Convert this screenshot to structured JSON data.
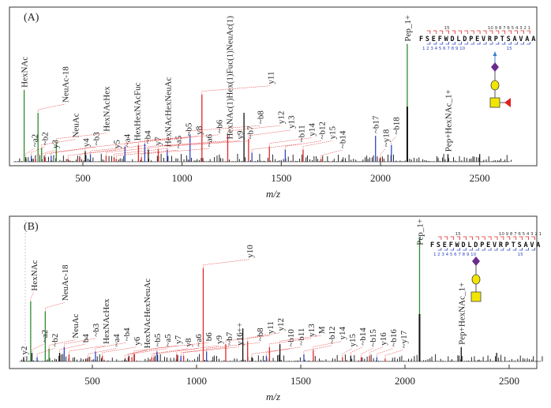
{
  "colors": {
    "glycan": "#2e8b2e",
    "y_ion": "#e02828",
    "b_ion": "#3048c0",
    "other": "#111111",
    "hexnac": "#f2e600",
    "hex": "#f2e600",
    "fuc": "#e02020",
    "neuac": "#6a2c8c",
    "site": "#e02020"
  },
  "chart_data": [
    {
      "type": "bar",
      "panel_label": "(A)",
      "xlabel": "m/z",
      "ylabel": "",
      "xlim": [
        125,
        2780
      ],
      "ylim": [
        0,
        100
      ],
      "xticks": [
        "500",
        "1000",
        "1500",
        "2000",
        "2500"
      ],
      "sequence": {
        "text": "FSEFWDLDPEVRPTSAVAA",
        "glycosite_index": 1,
        "y_numbers_top": [
          "15",
          "10 9 8 7 6 5 4 3 2 1"
        ],
        "b_numbers_bottom": [
          "1 2 3 4 5 6 7 8 9 10",
          "15"
        ]
      },
      "glycan": [
        "HexNAc",
        "Fuc",
        "Hex",
        "NeuAc"
      ],
      "peaks": [
        {
          "label": "HexNAc",
          "mz": 204,
          "intensity": 47,
          "type": "glycan"
        },
        {
          "label": "~a2",
          "mz": 212,
          "intensity": 3,
          "type": "other"
        },
        {
          "label": "~b2",
          "mz": 240,
          "intensity": 4,
          "type": "b"
        },
        {
          "label": "y3",
          "mz": 262,
          "intensity": 2,
          "type": "y"
        },
        {
          "label": "NeuAc-18",
          "mz": 274,
          "intensity": 32,
          "type": "glycan"
        },
        {
          "label": "NeuAc",
          "mz": 292,
          "intensity": 9,
          "type": "glycan"
        },
        {
          "label": "y4",
          "mz": 310,
          "intensity": 3,
          "type": "y"
        },
        {
          "label": "~b3",
          "mz": 340,
          "intensity": 4,
          "type": "b"
        },
        {
          "label": "HexNAcHex",
          "mz": 366,
          "intensity": 13,
          "type": "glycan"
        },
        {
          "label": "y5",
          "mz": 425,
          "intensity": 2,
          "type": "y"
        },
        {
          "label": "~a4",
          "mz": 485,
          "intensity": 3,
          "type": "y"
        },
        {
          "label": "HexHexNAcFuc",
          "mz": 512,
          "intensity": 7,
          "type": "other"
        },
        {
          "label": "~b4",
          "mz": 538,
          "intensity": 5,
          "type": "b"
        },
        {
          "label": "y7",
          "mz": 617,
          "intensity": 4,
          "type": "y"
        },
        {
          "label": "HexNAcHexNeuAc",
          "mz": 657,
          "intensity": 3,
          "type": "y"
        },
        {
          "label": "~a5",
          "mz": 668,
          "intensity": 2,
          "type": "y"
        },
        {
          "label": "~b5",
          "mz": 712,
          "intensity": 10,
          "type": "b"
        },
        {
          "label": "y8",
          "mz": 780,
          "intensity": 11,
          "type": "y"
        },
        {
          "label": "~a6",
          "mz": 795,
          "intensity": 3,
          "type": "y"
        },
        {
          "label": "~b6",
          "mz": 812,
          "intensity": 12,
          "type": "b"
        },
        {
          "label": "HexNAc(1)Hex(1)Fuc(1)NeuAc(1)",
          "mz": 830,
          "intensity": 8,
          "type": "other"
        },
        {
          "label": "y9",
          "mz": 880,
          "intensity": 8,
          "type": "y"
        },
        {
          "label": "~b7",
          "mz": 925,
          "intensity": 8,
          "type": "b"
        },
        {
          "label": "~b8",
          "mz": 1040,
          "intensity": 18,
          "type": "b"
        },
        {
          "label": "y11",
          "mz": 1100,
          "intensity": 44,
          "type": "y"
        },
        {
          "label": "y12",
          "mz": 1230,
          "intensity": 18,
          "type": "y"
        },
        {
          "label": "",
          "mz": 1312,
          "intensity": 32,
          "type": "other"
        },
        {
          "label": "y13",
          "mz": 1335,
          "intensity": 15,
          "type": "y"
        },
        {
          "label": "~b11",
          "mz": 1352,
          "intensity": 6,
          "type": "b"
        },
        {
          "label": "y14",
          "mz": 1440,
          "intensity": 10,
          "type": "y"
        },
        {
          "label": "~b12",
          "mz": 1520,
          "intensity": 8,
          "type": "b"
        },
        {
          "label": "y15",
          "mz": 1610,
          "intensity": 8,
          "type": "y"
        },
        {
          "label": "~b14",
          "mz": 1700,
          "intensity": 2,
          "type": "y"
        },
        {
          "label": "~b17",
          "mz": 1975,
          "intensity": 17,
          "type": "b"
        },
        {
          "label": "~y18",
          "mz": 2000,
          "intensity": 3,
          "type": "y"
        },
        {
          "label": "~b18",
          "mz": 2055,
          "intensity": 11,
          "type": "b"
        },
        {
          "label": "Pep_1+",
          "mz": 2135,
          "intensity": 77,
          "type": "glycan",
          "black_part": 36
        },
        {
          "label": "Pep+HexNAc_1+",
          "mz": 2340,
          "intensity": 5,
          "type": "other"
        },
        {
          "label": "",
          "mz": 2500,
          "intensity": 5,
          "type": "other"
        }
      ]
    },
    {
      "type": "bar",
      "panel_label": "(B)",
      "xlabel": "m/z",
      "ylabel": "",
      "xlim": [
        85,
        2620
      ],
      "ylim": [
        0,
        100
      ],
      "xticks": [
        "500",
        "1000",
        "1500",
        "2000",
        "2500"
      ],
      "sequence": {
        "text": "FSEFWDLDPEVRPTSAVA",
        "glycosite_index": 1,
        "y_numbers_top": [
          "15",
          "10 9 8 7 6 5 4 3 2 1"
        ],
        "b_numbers_bottom": [
          "1 2 3 4 5 6 7 8 9 10",
          "15"
        ]
      },
      "glycan": [
        "HexNAc",
        "Hex",
        "NeuAc"
      ],
      "peaks": [
        {
          "label": "y2",
          "mz": 170,
          "intensity": 3,
          "type": "other"
        },
        {
          "label": "HexNAc",
          "mz": 204,
          "intensity": 42,
          "type": "glycan"
        },
        {
          "label": "~a2",
          "mz": 210,
          "intensity": 6,
          "type": "other"
        },
        {
          "label": "~b2",
          "mz": 235,
          "intensity": 3,
          "type": "b"
        },
        {
          "label": "NeuAc-18",
          "mz": 274,
          "intensity": 35,
          "type": "glycan"
        },
        {
          "label": "NeuAc",
          "mz": 292,
          "intensity": 9,
          "type": "glycan"
        },
        {
          "label": "b4",
          "mz": 343,
          "intensity": 6,
          "type": "other"
        },
        {
          "label": "~b3",
          "mz": 365,
          "intensity": 10,
          "type": "b"
        },
        {
          "label": "HexNAcHex",
          "mz": 388,
          "intensity": 5,
          "type": "y"
        },
        {
          "label": "~a4",
          "mz": 480,
          "intensity": 3,
          "type": "y"
        },
        {
          "label": "~b4",
          "mz": 515,
          "intensity": 7,
          "type": "b"
        },
        {
          "label": "y6",
          "mz": 548,
          "intensity": 4,
          "type": "y"
        },
        {
          "label": "HexNAcHexNeuAc",
          "mz": 657,
          "intensity": 2,
          "type": "other"
        },
        {
          "label": "~b5",
          "mz": 672,
          "intensity": 3,
          "type": "y"
        },
        {
          "label": "~a5",
          "mz": 690,
          "intensity": 3,
          "type": "y"
        },
        {
          "label": "y7",
          "mz": 700,
          "intensity": 5,
          "type": "y"
        },
        {
          "label": "y8",
          "mz": 785,
          "intensity": 3,
          "type": "y"
        },
        {
          "label": "~a6",
          "mz": 795,
          "intensity": 3,
          "type": "y"
        },
        {
          "label": "b6",
          "mz": 810,
          "intensity": 7,
          "type": "b"
        },
        {
          "label": "y9",
          "mz": 905,
          "intensity": 5,
          "type": "y"
        },
        {
          "label": "~b7",
          "mz": 925,
          "intensity": 4,
          "type": "b"
        },
        {
          "label": "y16++",
          "mz": 938,
          "intensity": 4,
          "type": "y"
        },
        {
          "label": "y10",
          "mz": 1032,
          "intensity": 65,
          "type": "y"
        },
        {
          "label": "~b8",
          "mz": 1048,
          "intensity": 7,
          "type": "b"
        },
        {
          "label": "y11",
          "mz": 1140,
          "intensity": 12,
          "type": "y"
        },
        {
          "label": "",
          "mz": 1222,
          "intensity": 23,
          "type": "other"
        },
        {
          "label": "y12",
          "mz": 1245,
          "intensity": 14,
          "type": "y"
        },
        {
          "label": "~b10",
          "mz": 1265,
          "intensity": 3,
          "type": "other"
        },
        {
          "label": "~b11",
          "mz": 1335,
          "intensity": 4,
          "type": "b"
        },
        {
          "label": "y13",
          "mz": 1350,
          "intensity": 10,
          "type": "y"
        },
        {
          "label": "M",
          "mz": 1400,
          "intensity": 12,
          "type": "other"
        },
        {
          "label": "~b12",
          "mz": 1515,
          "intensity": 5,
          "type": "b"
        },
        {
          "label": "y14",
          "mz": 1560,
          "intensity": 8,
          "type": "y"
        },
        {
          "label": "y15",
          "mz": 1700,
          "intensity": 3,
          "type": "y"
        },
        {
          "label": "~b14",
          "mz": 1740,
          "intensity": 4,
          "type": "other"
        },
        {
          "label": "~b15",
          "mz": 1790,
          "intensity": 3,
          "type": "y"
        },
        {
          "label": "y16",
          "mz": 1830,
          "intensity": 4,
          "type": "y"
        },
        {
          "label": "~b16",
          "mz": 1865,
          "intensity": 3,
          "type": "b"
        },
        {
          "label": "~y17",
          "mz": 1905,
          "intensity": 2,
          "type": "y"
        },
        {
          "label": "Pep_1+",
          "mz": 2070,
          "intensity": 86,
          "type": "glycan",
          "black_part": 33
        },
        {
          "label": "Pep+HexNAc_1+",
          "mz": 2270,
          "intensity": 10,
          "type": "other"
        },
        {
          "label": "",
          "mz": 2440,
          "intensity": 6,
          "type": "other"
        }
      ]
    }
  ]
}
